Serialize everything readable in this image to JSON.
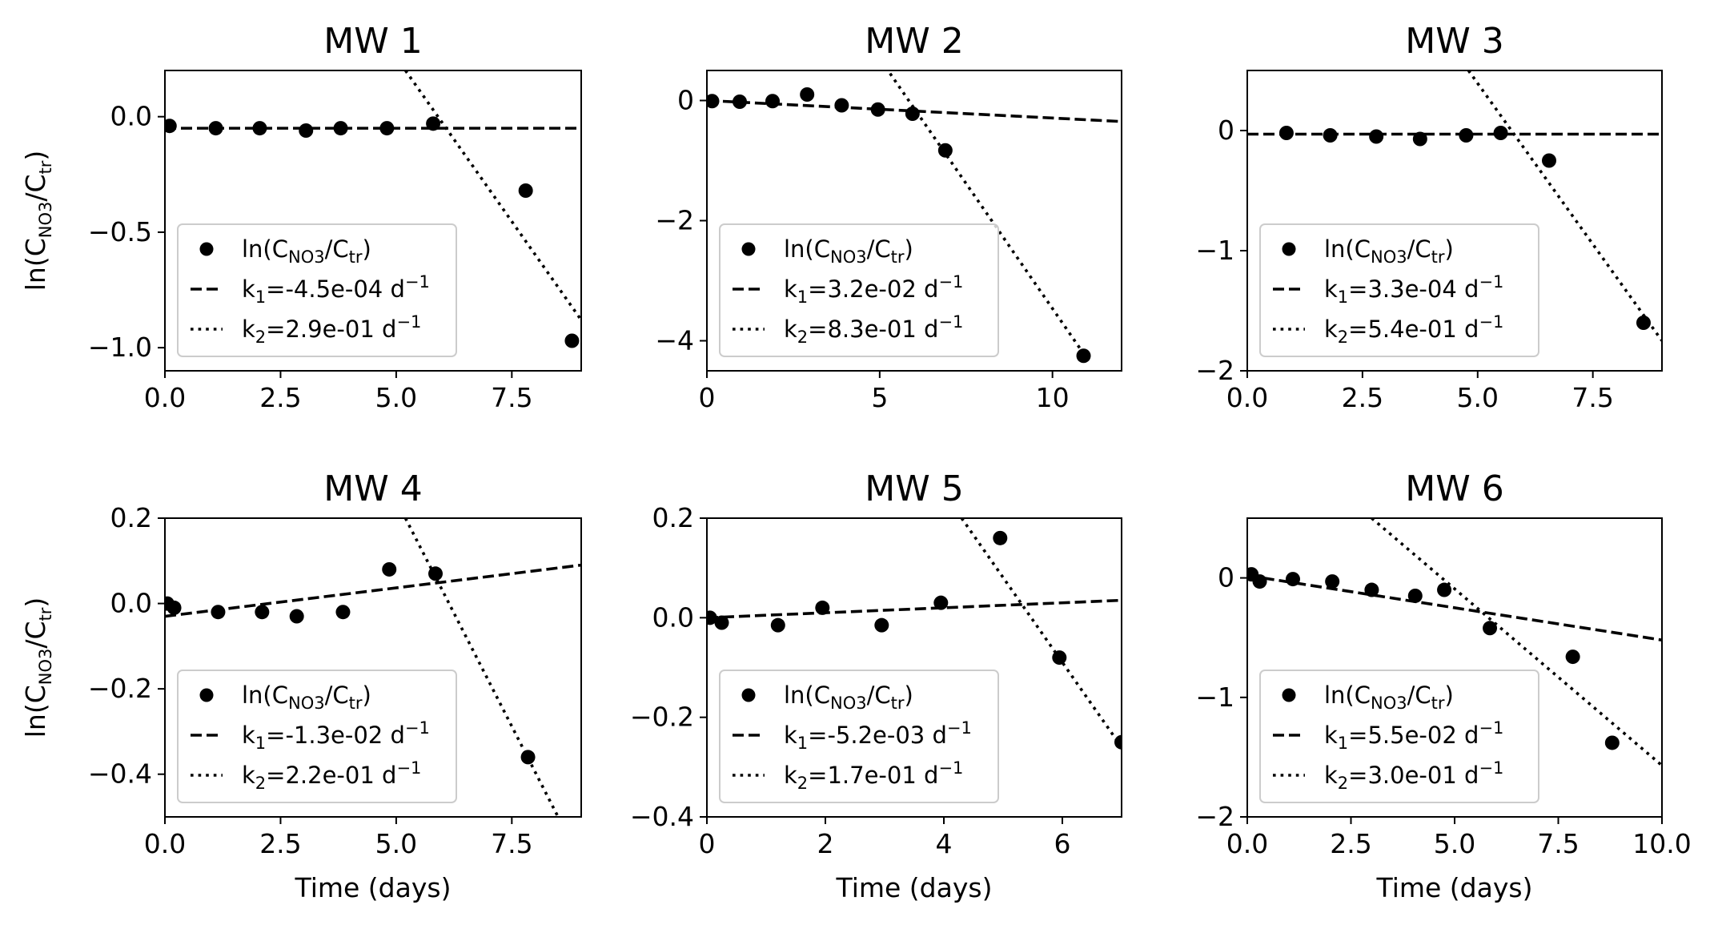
{
  "figure": {
    "ylabel_main": "ln(C",
    "ylabel_sub": "NO3",
    "ylabel_mid": "/C",
    "ylabel_sub2": "tr",
    "ylabel_end": ")",
    "xlabel": "Time (days)"
  },
  "chart_data": [
    {
      "type": "scatter",
      "title": "MW 1",
      "xlim": [
        0,
        9
      ],
      "ylim": [
        -1.1,
        0.2
      ],
      "xticks": [
        "0.0",
        "2.5",
        "5.0",
        "7.5"
      ],
      "xtick_values": [
        0,
        2.5,
        5.0,
        7.5
      ],
      "yticks": [
        "0.0",
        "−0.5",
        "−1.0"
      ],
      "ytick_values": [
        0.0,
        -0.5,
        -1.0
      ],
      "xlabel": "",
      "ylabel": "ln(CNO3/Ctr)",
      "points": {
        "x": [
          0.1,
          1.1,
          2.05,
          3.05,
          3.8,
          4.8,
          5.8,
          7.8,
          8.8
        ],
        "y": [
          -0.04,
          -0.05,
          -0.05,
          -0.06,
          -0.05,
          -0.05,
          -0.03,
          -0.32,
          -0.97
        ]
      },
      "fit1": {
        "x": [
          0,
          9
        ],
        "y": [
          -0.05,
          -0.05
        ]
      },
      "fit2": {
        "x": [
          5.2,
          9
        ],
        "y": [
          0.2,
          -0.88
        ]
      },
      "legend": {
        "points": "ln(CNO3/Ctr)",
        "k1": "k1=-4.5e-04 d−1",
        "k1_value": "=-4.5e-04 d",
        "k2_value": "=2.9e-01 d"
      }
    },
    {
      "type": "scatter",
      "title": "MW 2",
      "xlim": [
        0,
        12
      ],
      "ylim": [
        -4.5,
        0.5
      ],
      "xticks": [
        "0",
        "5",
        "10"
      ],
      "xtick_values": [
        0,
        5,
        10
      ],
      "yticks": [
        "0",
        "−2",
        "−4"
      ],
      "ytick_values": [
        0,
        -2,
        -4
      ],
      "xlabel": "",
      "ylabel": "",
      "points": {
        "x": [
          0.15,
          0.95,
          1.9,
          2.9,
          3.9,
          4.95,
          5.95,
          6.9,
          10.9
        ],
        "y": [
          -0.01,
          -0.02,
          -0.01,
          0.1,
          -0.08,
          -0.15,
          -0.22,
          -0.83,
          -4.25
        ]
      },
      "fit1": {
        "x": [
          0,
          12
        ],
        "y": [
          0.0,
          -0.35
        ]
      },
      "fit2": {
        "x": [
          5.3,
          11.1
        ],
        "y": [
          0.45,
          -4.38
        ]
      },
      "legend": {
        "k1_value": "=3.2e-02 d",
        "k2_value": "=8.3e-01 d"
      }
    },
    {
      "type": "scatter",
      "title": "MW 3",
      "xlim": [
        0,
        9
      ],
      "ylim": [
        -2.0,
        0.5
      ],
      "xticks": [
        "0.0",
        "2.5",
        "5.0",
        "7.5"
      ],
      "xtick_values": [
        0,
        2.5,
        5.0,
        7.5
      ],
      "yticks": [
        "0",
        "−1",
        "−2"
      ],
      "ytick_values": [
        0,
        -1,
        -2
      ],
      "xlabel": "",
      "ylabel": "",
      "points": {
        "x": [
          0.85,
          1.8,
          2.8,
          3.75,
          4.75,
          5.5,
          6.55,
          8.6
        ],
        "y": [
          -0.02,
          -0.04,
          -0.05,
          -0.07,
          -0.04,
          -0.02,
          -0.25,
          -1.6
        ]
      },
      "fit1": {
        "x": [
          0,
          9
        ],
        "y": [
          -0.03,
          -0.03
        ]
      },
      "fit2": {
        "x": [
          4.8,
          9
        ],
        "y": [
          0.5,
          -1.75
        ]
      },
      "legend": {
        "k1_value": "=3.3e-04 d",
        "k2_value": "=5.4e-01 d"
      }
    },
    {
      "type": "scatter",
      "title": "MW 4",
      "xlim": [
        0,
        9
      ],
      "ylim": [
        -0.5,
        0.2
      ],
      "xticks": [
        "0.0",
        "2.5",
        "5.0",
        "7.5"
      ],
      "xtick_values": [
        0,
        2.5,
        5.0,
        7.5
      ],
      "yticks": [
        "0.2",
        "0.0",
        "−0.2",
        "−0.4"
      ],
      "ytick_values": [
        0.2,
        0.0,
        -0.2,
        -0.4
      ],
      "xlabel": "Time (days)",
      "ylabel": "ln(CNO3/Ctr)",
      "points": {
        "x": [
          0.05,
          0.2,
          1.15,
          2.1,
          2.85,
          3.85,
          4.85,
          5.85,
          7.85
        ],
        "y": [
          0.0,
          -0.01,
          -0.02,
          -0.02,
          -0.03,
          -0.02,
          0.08,
          0.07,
          -0.36
        ]
      },
      "fit1": {
        "x": [
          0,
          9
        ],
        "y": [
          -0.03,
          0.09
        ]
      },
      "fit2": {
        "x": [
          5.2,
          8.5
        ],
        "y": [
          0.2,
          -0.5
        ]
      },
      "legend": {
        "k1_value": "=-1.3e-02 d",
        "k2_value": "=2.2e-01 d"
      }
    },
    {
      "type": "scatter",
      "title": "MW 5",
      "xlim": [
        0,
        7
      ],
      "ylim": [
        -0.4,
        0.2
      ],
      "xticks": [
        "0",
        "2",
        "4",
        "6"
      ],
      "xtick_values": [
        0,
        2,
        4,
        6
      ],
      "yticks": [
        "0.2",
        "0.0",
        "−0.2",
        "−0.4"
      ],
      "ytick_values": [
        0.2,
        0.0,
        -0.2,
        -0.4
      ],
      "xlabel": "Time (days)",
      "ylabel": "",
      "points": {
        "x": [
          0.05,
          0.25,
          1.2,
          1.95,
          2.95,
          3.95,
          4.95,
          5.95,
          7.0
        ],
        "y": [
          0.0,
          -0.01,
          -0.015,
          0.02,
          -0.015,
          0.03,
          0.16,
          -0.08,
          -0.25
        ]
      },
      "fit1": {
        "x": [
          0,
          7
        ],
        "y": [
          0.0,
          0.035
        ]
      },
      "fit2": {
        "x": [
          4.3,
          7
        ],
        "y": [
          0.2,
          -0.26
        ]
      },
      "legend": {
        "k1_value": "=-5.2e-03 d",
        "k2_value": "=1.7e-01 d"
      }
    },
    {
      "type": "scatter",
      "title": "MW 6",
      "xlim": [
        0,
        10
      ],
      "ylim": [
        -2.0,
        0.5
      ],
      "xticks": [
        "0.0",
        "2.5",
        "5.0",
        "7.5",
        "10.0"
      ],
      "xtick_values": [
        0,
        2.5,
        5.0,
        7.5,
        10.0
      ],
      "yticks": [
        "0",
        "−1",
        "−2"
      ],
      "ytick_values": [
        0,
        -1,
        -2
      ],
      "xlabel": "Time (days)",
      "ylabel": "",
      "points": {
        "x": [
          0.1,
          0.3,
          1.1,
          2.05,
          3.0,
          4.05,
          4.75,
          5.85,
          7.85,
          8.8
        ],
        "y": [
          0.03,
          -0.03,
          -0.01,
          -0.03,
          -0.1,
          -0.15,
          -0.1,
          -0.42,
          -0.66,
          -1.38
        ]
      },
      "fit1": {
        "x": [
          0,
          10
        ],
        "y": [
          0.02,
          -0.52
        ]
      },
      "fit2": {
        "x": [
          3.0,
          10
        ],
        "y": [
          0.5,
          -1.57
        ]
      },
      "legend": {
        "k1_value": "=5.5e-02 d",
        "k2_value": "=3.0e-01 d"
      }
    }
  ],
  "legend_common": {
    "points_main": "ln(C",
    "points_sub": "NO3",
    "points_mid": "/C",
    "points_sub2": "tr",
    "points_end": ")",
    "k1_prefix": "k",
    "k1_sub": "1",
    "k2_prefix": "k",
    "k2_sub": "2",
    "exp": "−1"
  }
}
